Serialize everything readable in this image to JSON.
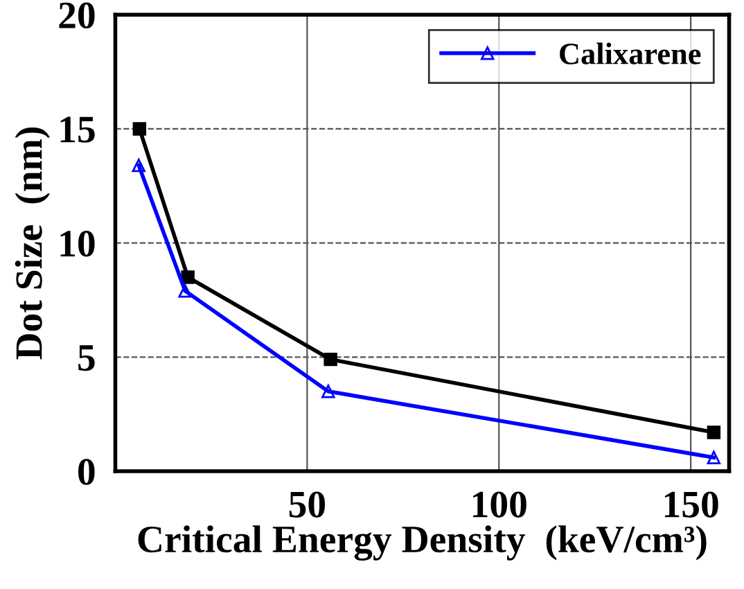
{
  "chart_data": {
    "type": "line",
    "xlabel": "Critical Energy Density  (keV/cm³)",
    "ylabel": "Dot Size  (nm)",
    "xlim": [
      0,
      160
    ],
    "xticks": [
      50,
      100,
      150
    ],
    "ylim": [
      0,
      20
    ],
    "yticks": [
      0,
      5,
      10,
      15,
      20
    ],
    "grid": true,
    "legend": "top right",
    "series": [
      {
        "color": "#000000",
        "marker": "square",
        "x": [
          6.3,
          18.9,
          56.1,
          156
        ],
        "values": [
          15.0,
          8.5,
          4.9,
          1.7
        ]
      },
      {
        "name": "Calixarene",
        "color": "#0000ff",
        "marker": "triangle",
        "x": [
          6.1,
          18.2,
          55.5,
          156
        ],
        "values": [
          13.4,
          7.9,
          3.5,
          0.6
        ]
      }
    ]
  }
}
